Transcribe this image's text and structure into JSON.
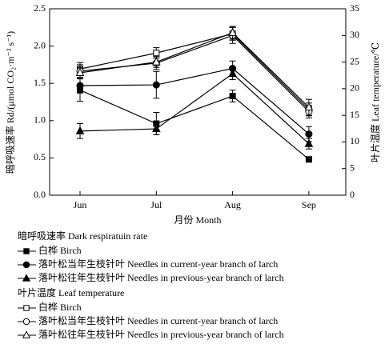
{
  "chart_data": {
    "type": "line",
    "categories": [
      "Jun",
      "Jul",
      "Aug",
      "Sep"
    ],
    "xlabel": "月份 Month",
    "ylabel": "暗呼吸速率 Rd/(μmol CO₂·m⁻² s⁻¹)",
    "y2label": "叶片温度   Leaf temperature/℃",
    "ylim": [
      0,
      2.5
    ],
    "yticks": [
      {
        "value": 0,
        "label": "0.0"
      },
      {
        "value": 0.5,
        "label": "0.5"
      },
      {
        "value": 1,
        "label": "1.0"
      },
      {
        "value": 1.5,
        "label": "1.5"
      },
      {
        "value": 2,
        "label": "2.0"
      },
      {
        "value": 2.5,
        "label": "2.5"
      }
    ],
    "y2lim": [
      0,
      35
    ],
    "y2ticks": [
      0,
      5,
      10,
      15,
      20,
      25,
      30,
      35
    ],
    "legend_titles": [
      "暗呼吸速率 Dark respiratuin rate",
      "叶片温度 Leaf temperature"
    ],
    "series": [
      {
        "name": "白桦 Birch",
        "color": "#000000",
        "marker": "square",
        "marker_filled": true,
        "values": [
          1.41,
          0.96,
          1.33,
          0.48
        ],
        "errors": [
          0.15,
          0.15,
          0.08,
          0.02
        ]
      },
      {
        "name": "落叶松当年生枝针叶 Needles in current-year branch of larch",
        "color": "#000000",
        "marker": "circle",
        "marker_filled": true,
        "values": [
          1.47,
          1.48,
          1.7,
          0.82
        ],
        "errors": [
          0.1,
          0.18,
          0.1,
          0.1
        ]
      },
      {
        "name": "落叶松往年生枝针叶 Needles in previous-year branch of larch",
        "color": "#000000",
        "marker": "triangle",
        "marker_filled": true,
        "values": [
          0.86,
          0.89,
          1.63,
          0.69
        ],
        "errors": [
          0.1,
          0.08,
          0.08,
          0.07
        ]
      },
      {
        "name": "白桦 Birch",
        "color": "#000000",
        "marker": "square",
        "marker_filled": false,
        "axis": "y2",
        "values": [
          23.7,
          26.7,
          30.3,
          16.1
        ],
        "errors": [
          1.2,
          1.0,
          1.2,
          1.2
        ]
      },
      {
        "name": "落叶松当年生枝针叶 Needles in current-year branch of larch",
        "color": "#000000",
        "marker": "circle",
        "marker_filled": false,
        "axis": "y2",
        "values": [
          23.3,
          24.8,
          30.0,
          15.7
        ],
        "errors": [
          1.2,
          1.2,
          1.5,
          1.2
        ]
      },
      {
        "name": "落叶松往年生枝针叶 Needles in previous-year branch of larch",
        "color": "#000000",
        "marker": "triangle",
        "marker_filled": false,
        "axis": "y2",
        "values": [
          23.0,
          25.0,
          30.5,
          16.5
        ],
        "errors": [
          1.0,
          1.0,
          1.2,
          1.5
        ]
      }
    ]
  }
}
